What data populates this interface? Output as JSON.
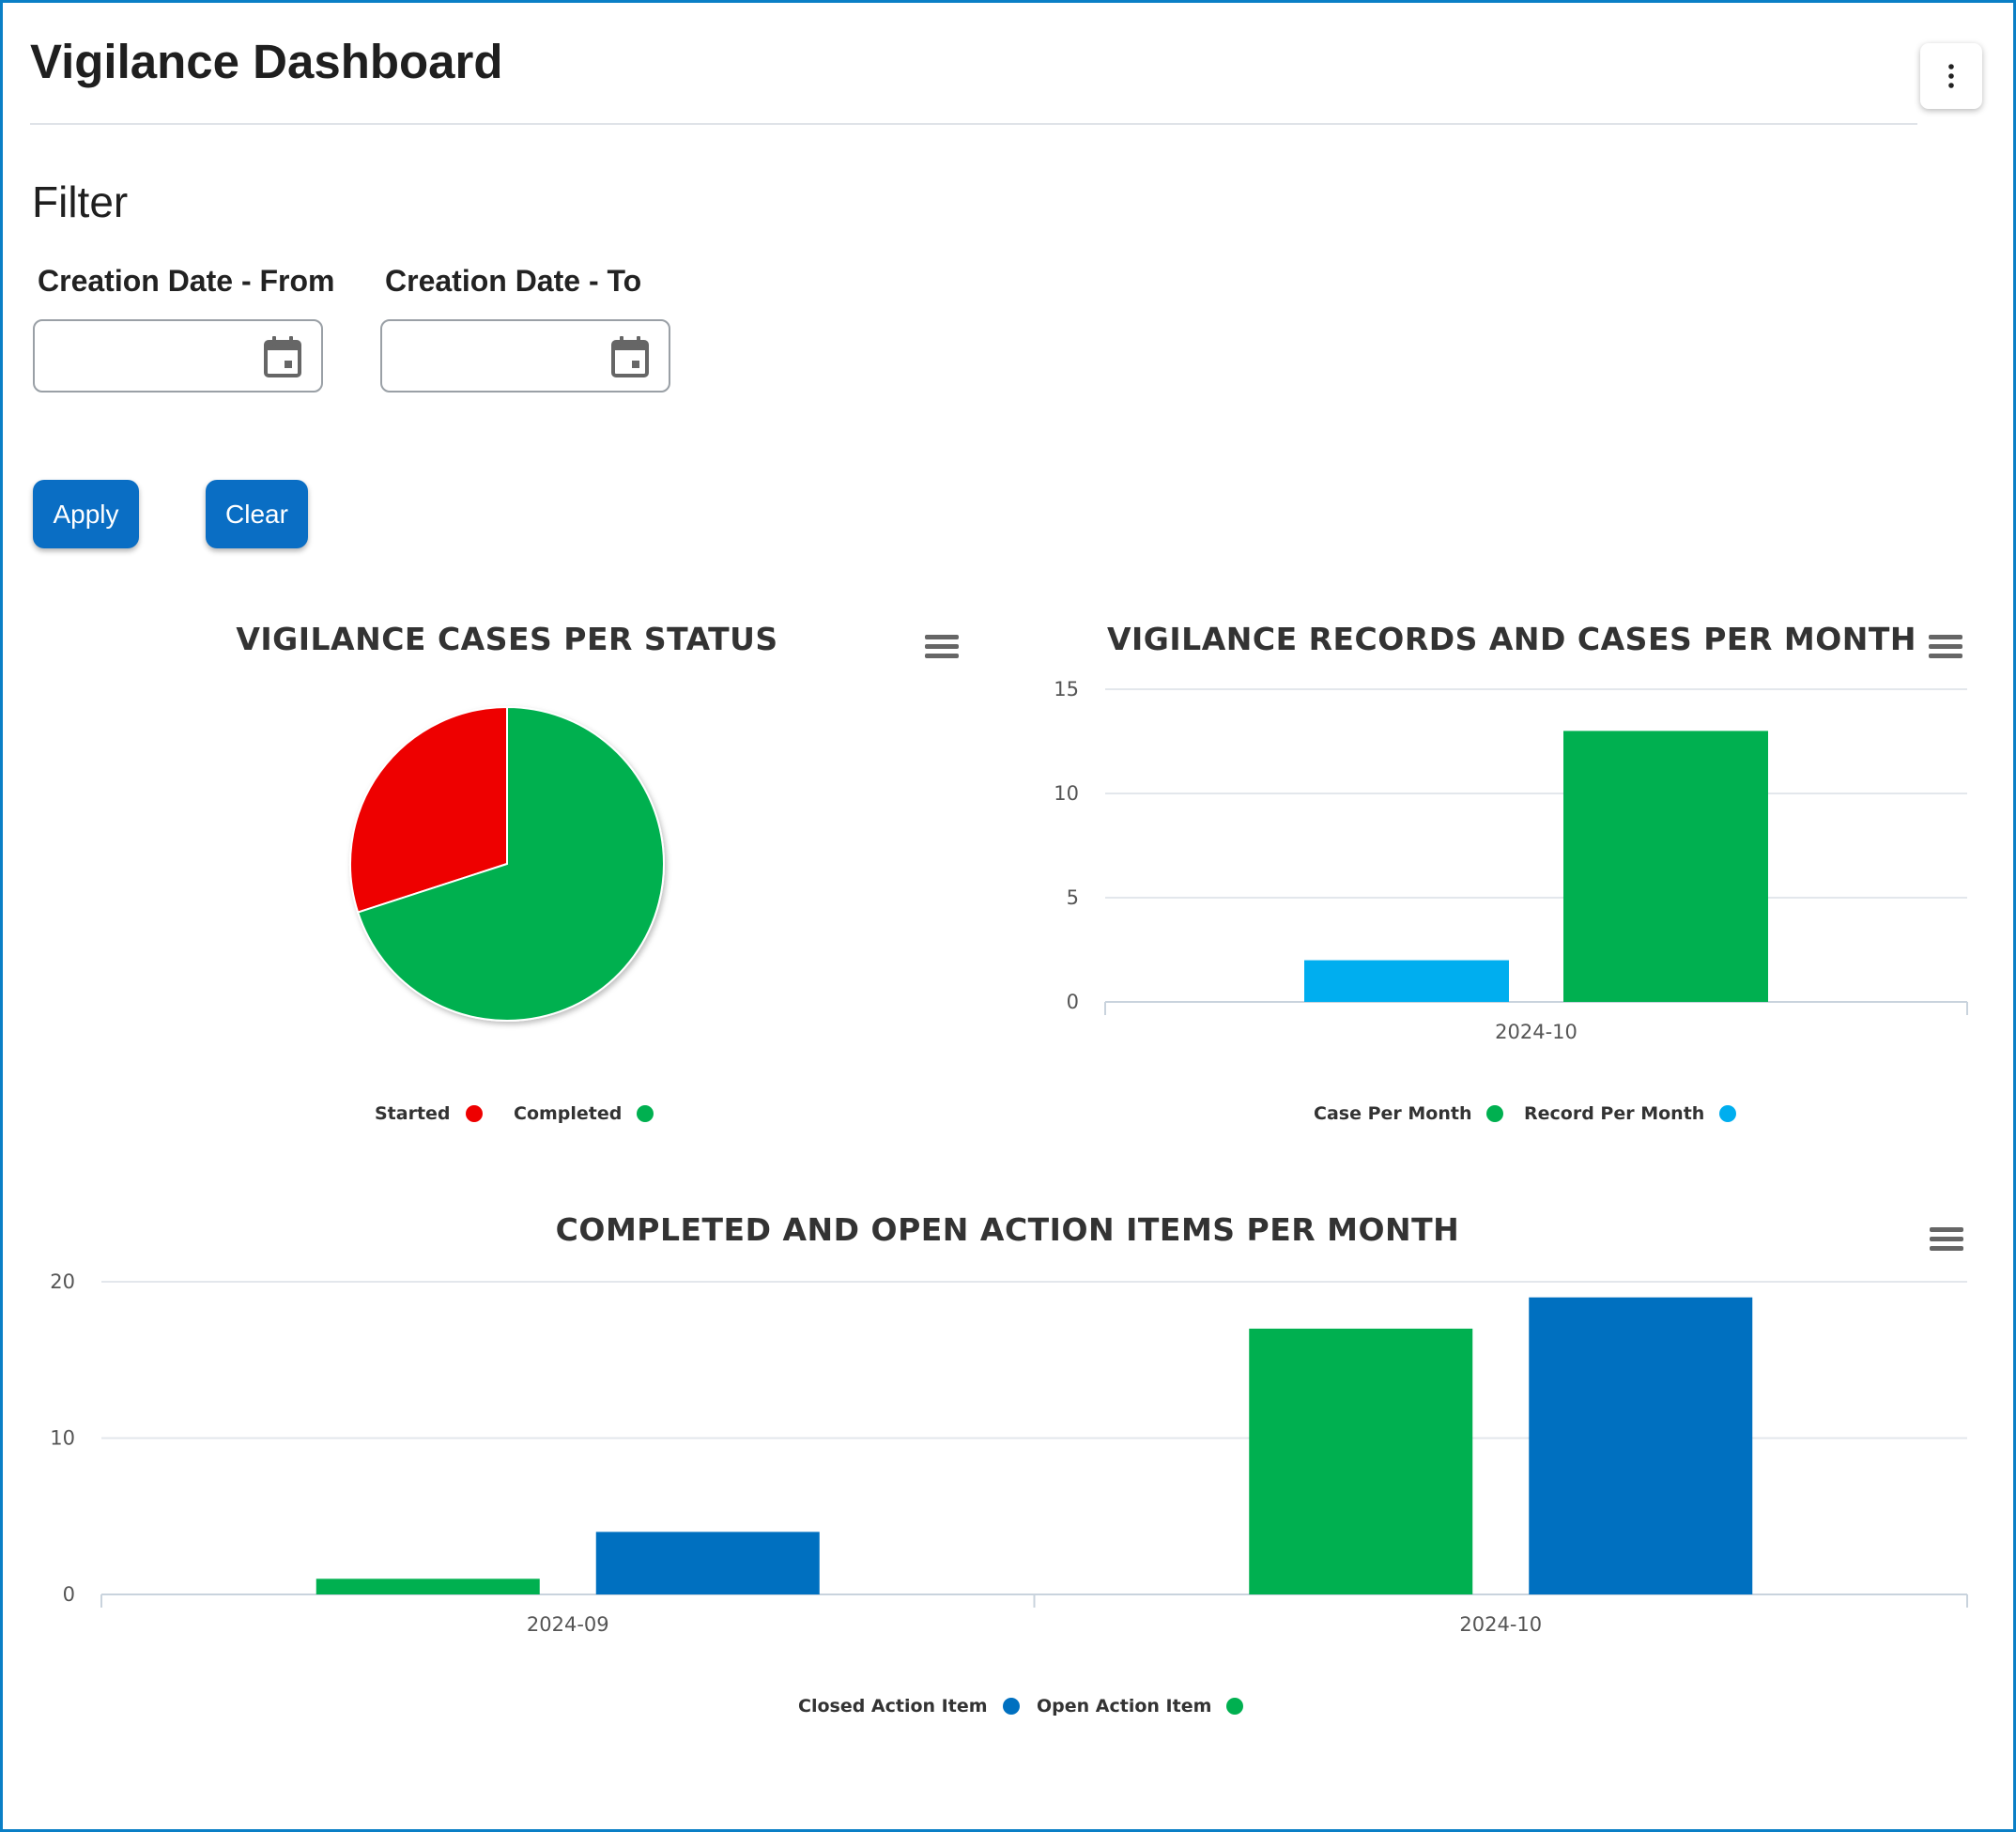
{
  "page": {
    "title": "Vigilance Dashboard",
    "menu_icon": "vertical-ellipsis-icon"
  },
  "filter": {
    "heading": "Filter",
    "from_label": "Creation Date - From",
    "from_value": "",
    "to_label": "Creation Date - To",
    "to_value": "",
    "calendar_icon": "calendar-icon",
    "apply_label": "Apply",
    "clear_label": "Clear"
  },
  "colors": {
    "accent": "#0a6ec4",
    "frame": "#0a7fc6",
    "started": "#ee0000",
    "completed": "#00b050",
    "record_per_month": "#00aeef",
    "closed_action_item": "#0070c0",
    "open_action_item": "#00b050"
  },
  "chart_data": [
    {
      "type": "pie",
      "title": "VIGILANCE CASES PER STATUS",
      "menu_icon": "hamburger-menu-icon",
      "slices": [
        {
          "name": "Started",
          "value": 3,
          "color": "#ee0000"
        },
        {
          "name": "Completed",
          "value": 7,
          "color": "#00b050"
        }
      ],
      "legend": [
        "Started",
        "Completed"
      ],
      "legend_position": "bottom"
    },
    {
      "type": "bar",
      "title": "VIGILANCE RECORDS AND CASES PER MONTH",
      "menu_icon": "hamburger-menu-icon",
      "categories": [
        "2024-10"
      ],
      "series": [
        {
          "name": "Record Per Month",
          "values": [
            2
          ],
          "color": "#00aeef"
        },
        {
          "name": "Case Per Month",
          "values": [
            13
          ],
          "color": "#00b050"
        }
      ],
      "legend": [
        "Case Per Month",
        "Record Per Month"
      ],
      "yticks": [
        "0",
        "5",
        "10",
        "15"
      ],
      "ylim": [
        0,
        15
      ],
      "grid": true,
      "legend_position": "bottom"
    },
    {
      "type": "bar",
      "title": "COMPLETED AND OPEN ACTION ITEMS PER MONTH",
      "menu_icon": "hamburger-menu-icon",
      "categories": [
        "2024-09",
        "2024-10"
      ],
      "series": [
        {
          "name": "Open Action Item",
          "values": [
            1,
            17
          ],
          "color": "#00b050"
        },
        {
          "name": "Closed Action Item",
          "values": [
            4,
            19
          ],
          "color": "#0070c0"
        }
      ],
      "legend": [
        "Closed Action Item",
        "Open Action Item"
      ],
      "yticks": [
        "0",
        "10",
        "20"
      ],
      "ylim": [
        0,
        20
      ],
      "grid": true,
      "legend_position": "bottom"
    }
  ]
}
